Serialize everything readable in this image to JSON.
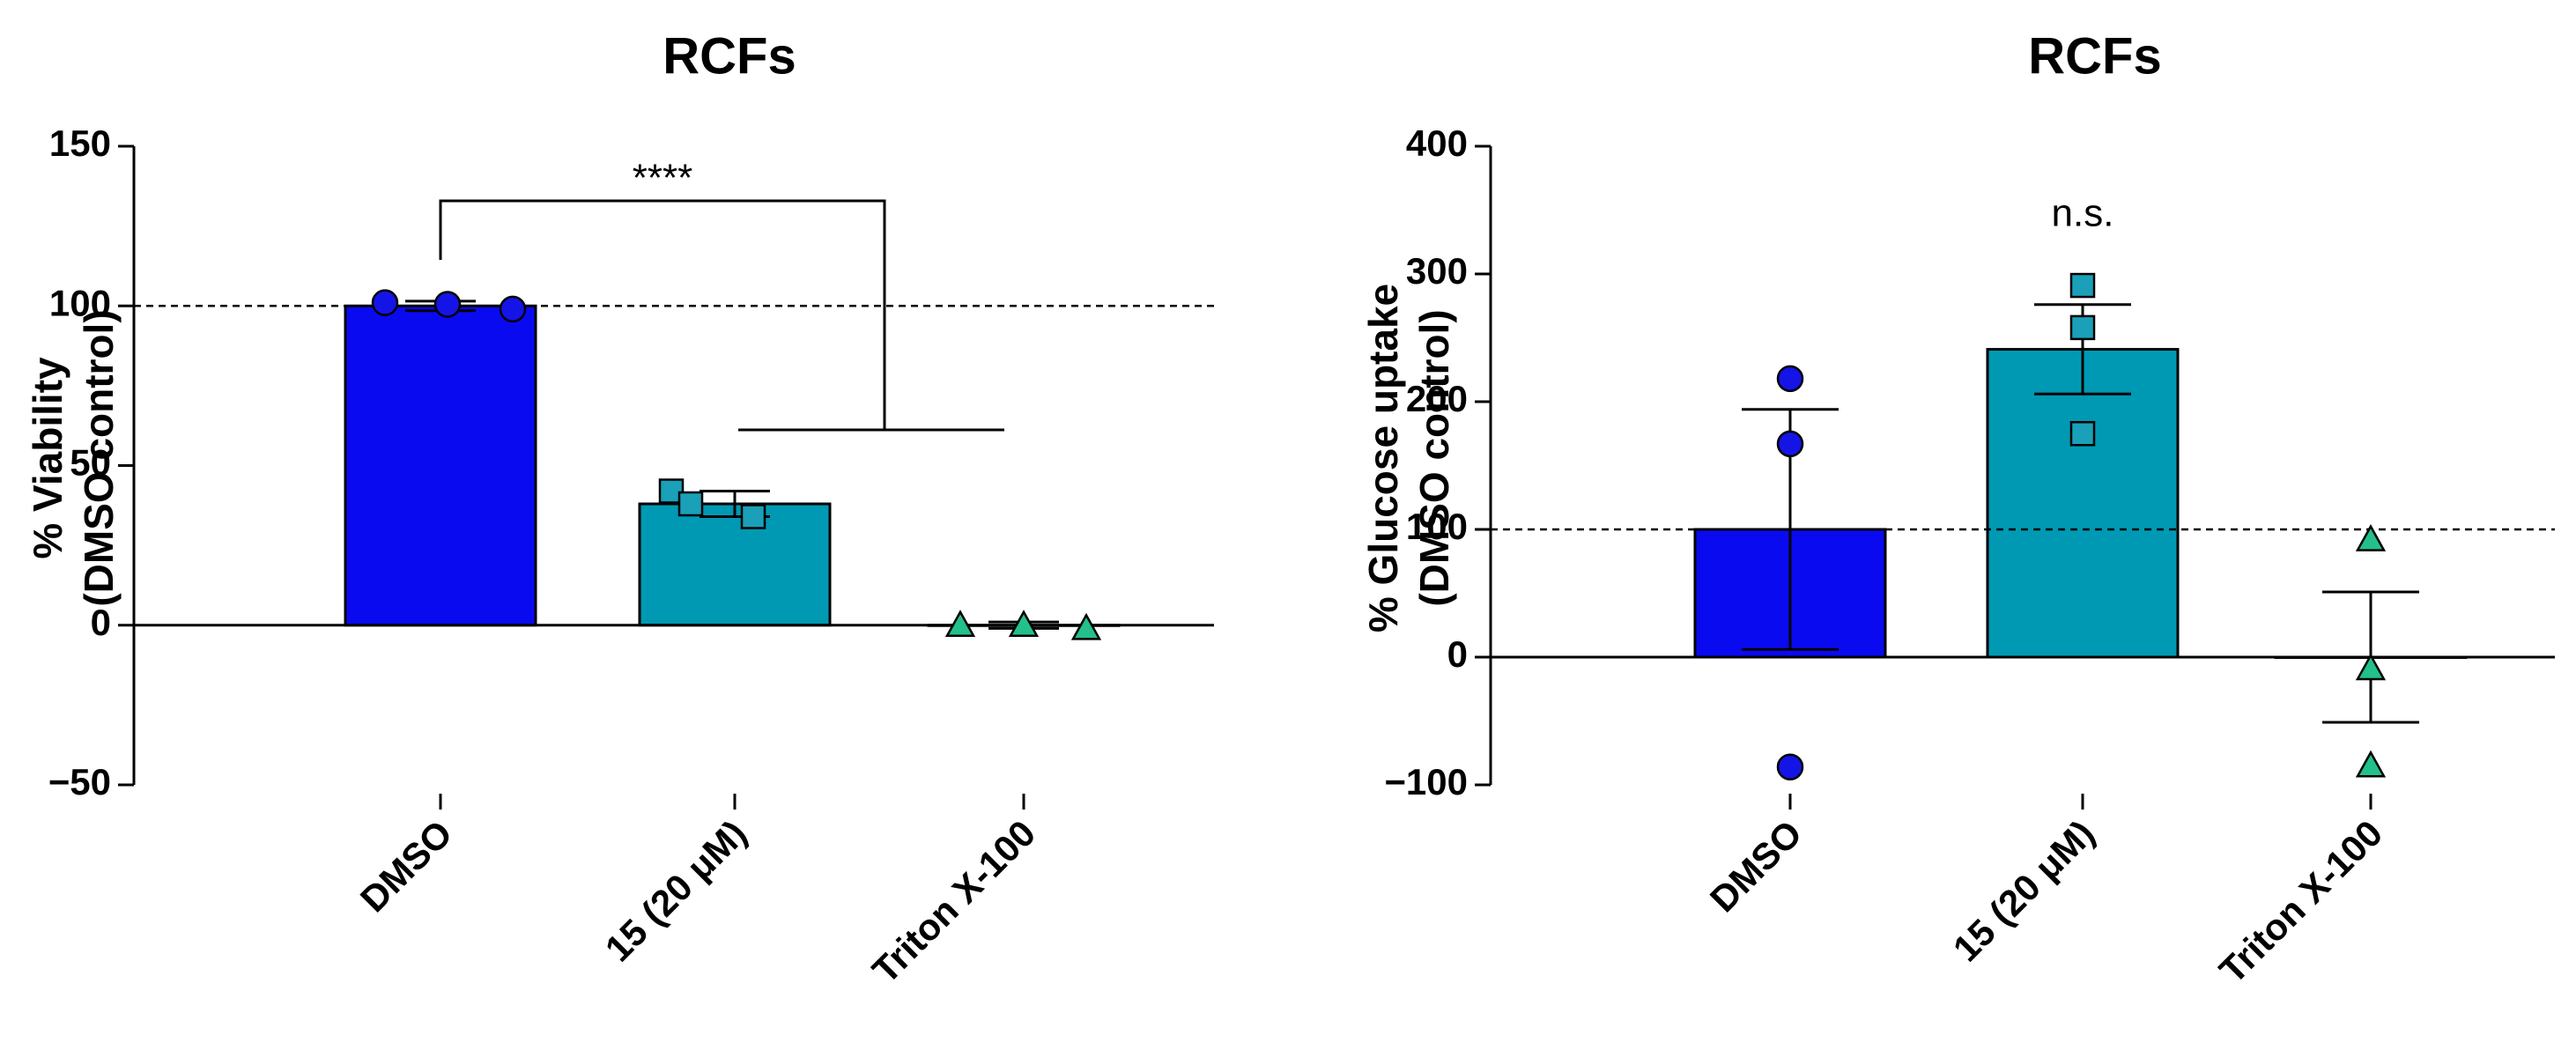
{
  "chart_data": [
    {
      "type": "bar",
      "title": "RCFs",
      "ylabel_line1": "% Viability",
      "ylabel_line2": "(DMSO control)",
      "categories": [
        "DMSO",
        "15 (20 μM)",
        "Triton X-100"
      ],
      "values": [
        100,
        38,
        0
      ],
      "errors": [
        1.5,
        4,
        1
      ],
      "ylim": [
        -50,
        150
      ],
      "yticks": [
        -50,
        0,
        50,
        100,
        150
      ],
      "ytick_labels": [
        "−50",
        "0",
        "50",
        "100",
        "150"
      ],
      "reference_line": 100,
      "bar_colors": [
        "#0a0af0",
        "#0099b3",
        "#ffffff"
      ],
      "marker_colors": [
        "#1414e6",
        "#1aa0b8",
        "#23c08a"
      ],
      "markers": [
        "circle",
        "square",
        "triangle"
      ],
      "points": [
        [
          101,
          100.5,
          99
        ],
        [
          42,
          38,
          34
        ],
        [
          0,
          0,
          -1
        ]
      ],
      "significance": {
        "label": "****",
        "from": "DMSO",
        "to": [
          "15 (20 μM)",
          "Triton X-100"
        ]
      }
    },
    {
      "type": "bar",
      "title": "RCFs",
      "ylabel_line1": "% Glucose uptake",
      "ylabel_line2": "(DMSO control)",
      "categories": [
        "DMSO",
        "15  (20 μM)",
        "Triton X-100"
      ],
      "values": [
        100,
        241,
        0
      ],
      "errors": [
        94,
        35,
        51
      ],
      "ylim": [
        -100,
        400
      ],
      "yticks": [
        -100,
        0,
        100,
        200,
        300,
        400
      ],
      "ytick_labels": [
        "−100",
        "0",
        "100",
        "200",
        "300",
        "400"
      ],
      "reference_line": 100,
      "bar_colors": [
        "#0a0af0",
        "#0099b3",
        "#ffffff"
      ],
      "marker_colors": [
        "#1414e6",
        "#1aa0b8",
        "#23c08a"
      ],
      "markers": [
        "circle",
        "square",
        "triangle"
      ],
      "points": [
        [
          218,
          167,
          -86
        ],
        [
          291,
          258,
          175
        ],
        [
          92,
          -9,
          -85
        ]
      ],
      "significance": {
        "label": "n.s.",
        "over": "15  (20 μM)"
      }
    }
  ]
}
